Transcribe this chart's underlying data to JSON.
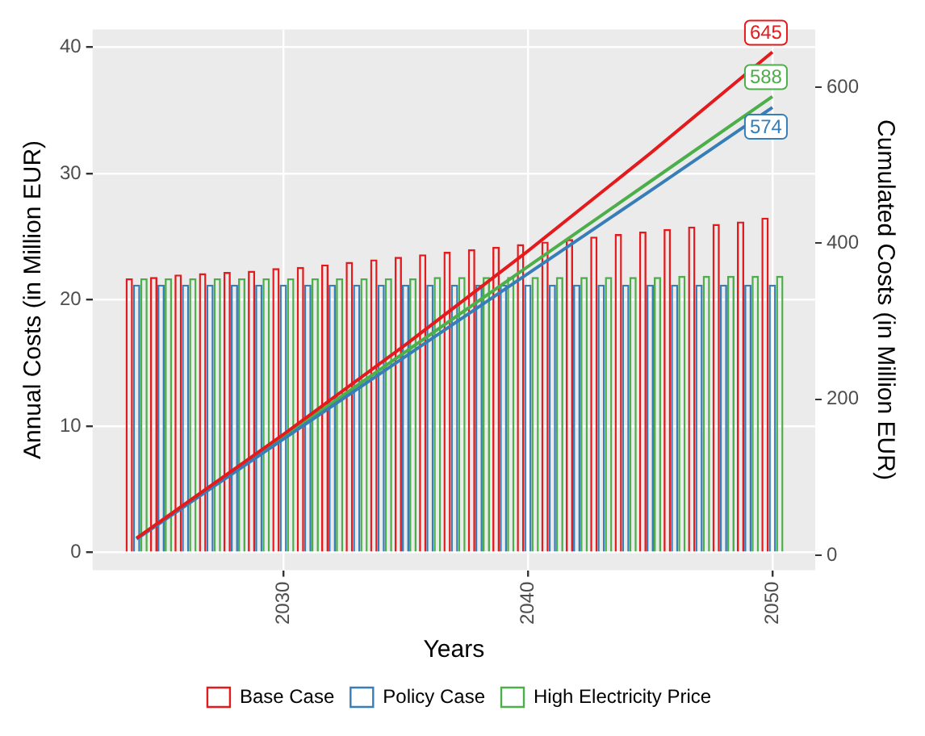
{
  "chart_data": {
    "type": "bar",
    "xlabel": "Years",
    "ylabel": "Annual Costs (in Million EUR)",
    "y2label": "Cumulated Costs (in Million EUR)",
    "x": [
      2024,
      2025,
      2026,
      2027,
      2028,
      2029,
      2030,
      2031,
      2032,
      2033,
      2034,
      2035,
      2036,
      2037,
      2038,
      2039,
      2040,
      2041,
      2042,
      2043,
      2044,
      2045,
      2046,
      2047,
      2048,
      2049,
      2050
    ],
    "series": [
      {
        "name": "Base Case",
        "color": "#e41a1c",
        "values": [
          21.7,
          21.8,
          22.0,
          22.1,
          22.2,
          22.3,
          22.5,
          22.6,
          22.8,
          23.0,
          23.2,
          23.4,
          23.6,
          23.8,
          24.0,
          24.2,
          24.4,
          24.6,
          24.8,
          25.0,
          25.2,
          25.4,
          25.6,
          25.8,
          26.0,
          26.2,
          26.5
        ]
      },
      {
        "name": "Policy Case",
        "color": "#377eb8",
        "values": [
          21.2,
          21.2,
          21.2,
          21.2,
          21.2,
          21.2,
          21.2,
          21.2,
          21.2,
          21.2,
          21.2,
          21.2,
          21.2,
          21.2,
          21.2,
          21.2,
          21.2,
          21.2,
          21.2,
          21.2,
          21.2,
          21.2,
          21.2,
          21.2,
          21.2,
          21.2,
          21.2
        ]
      },
      {
        "name": "High Electricity Price",
        "color": "#4daf4a",
        "values": [
          21.7,
          21.7,
          21.7,
          21.7,
          21.7,
          21.7,
          21.7,
          21.7,
          21.7,
          21.7,
          21.7,
          21.7,
          21.8,
          21.8,
          21.8,
          21.8,
          21.8,
          21.8,
          21.8,
          21.8,
          21.8,
          21.8,
          21.9,
          21.9,
          21.9,
          21.9,
          21.9
        ]
      },
      {
        "type": "line",
        "axis": "y2",
        "color": "#e41a1c",
        "x": [
          2024,
          2030,
          2035,
          2040,
          2045,
          2050
        ],
        "values": [
          22,
          155,
          270,
          390,
          515,
          645
        ],
        "value_labels": [
          null,
          null,
          null,
          null,
          null,
          "645"
        ]
      },
      {
        "type": "line",
        "axis": "y2",
        "color": "#377eb8",
        "x": [
          2024,
          2030,
          2035,
          2040,
          2045,
          2050
        ],
        "values": [
          21,
          149,
          255,
          361,
          467,
          574
        ],
        "value_labels": [
          null,
          null,
          null,
          null,
          null,
          "574"
        ]
      },
      {
        "type": "line",
        "axis": "y2",
        "color": "#4daf4a",
        "x": [
          2024,
          2030,
          2035,
          2040,
          2045,
          2050
        ],
        "values": [
          22,
          152,
          261,
          370,
          479,
          588
        ],
        "value_labels": [
          null,
          null,
          null,
          null,
          null,
          "588"
        ]
      }
    ],
    "xlim": [
      2022.2,
      2051.75
    ],
    "xticks": [
      2030,
      2040,
      2050
    ],
    "ylim": [
      -1.4,
      41.4
    ],
    "yticks": [
      0,
      10,
      20,
      30,
      40
    ],
    "y2lim": [
      -19,
      674
    ],
    "y2ticks": [
      0,
      200,
      400,
      600
    ],
    "grid": true,
    "legend": "bottom",
    "marker": "none",
    "line_style": "solid"
  }
}
